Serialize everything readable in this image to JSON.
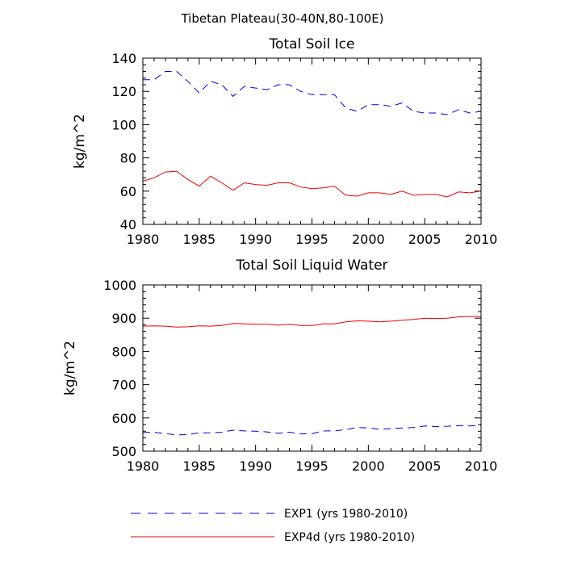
{
  "suptitle": "Tibetan Plateau(30-40N,80-100E)",
  "legend": [
    {
      "label": "EXP1 (yrs 1980-2010)",
      "color": "#0000ee",
      "dash": true
    },
    {
      "label": "EXP4d (yrs 1980-2010)",
      "color": "#ee0000",
      "dash": false
    }
  ],
  "chart_data": [
    {
      "type": "line",
      "title": "Total Soil Ice",
      "xlabel": "",
      "ylabel": "kg/m^2",
      "xlim": [
        1980,
        2010
      ],
      "ylim": [
        40,
        140
      ],
      "xticks": [
        1980,
        1985,
        1990,
        1995,
        2000,
        2005,
        2010
      ],
      "yticks": [
        40,
        60,
        80,
        100,
        120,
        140
      ],
      "x": [
        1980,
        1981,
        1982,
        1983,
        1984,
        1985,
        1986,
        1987,
        1988,
        1989,
        1990,
        1991,
        1992,
        1993,
        1994,
        1995,
        1996,
        1997,
        1998,
        1999,
        2000,
        2001,
        2002,
        2003,
        2004,
        2005,
        2006,
        2007,
        2008,
        2009,
        2010
      ],
      "series": [
        {
          "name": "EXP1 (yrs 1980-2010)",
          "color": "#0000ee",
          "dash": true,
          "values": [
            127,
            127,
            132,
            132,
            126,
            119,
            126,
            124,
            117,
            123,
            122,
            121,
            124,
            124,
            120,
            118,
            118,
            118,
            110,
            108,
            112,
            112,
            111,
            113,
            108,
            107,
            107,
            106,
            109,
            107,
            108
          ]
        },
        {
          "name": "EXP4d (yrs 1980-2010)",
          "color": "#ee0000",
          "dash": false,
          "values": [
            66,
            68,
            71.5,
            72,
            67,
            63,
            69,
            65,
            60.5,
            65,
            64,
            63.5,
            65,
            65,
            62.5,
            61.5,
            62,
            63,
            57.5,
            57,
            59,
            59,
            58,
            60,
            57.5,
            58,
            58,
            56.5,
            59.5,
            59,
            60
          ]
        }
      ]
    },
    {
      "type": "line",
      "title": "Total Soil Liquid Water",
      "xlabel": "",
      "ylabel": "kg/m^2",
      "xlim": [
        1980,
        2010
      ],
      "ylim": [
        500,
        1000
      ],
      "xticks": [
        1980,
        1985,
        1990,
        1995,
        2000,
        2005,
        2010
      ],
      "yticks": [
        500,
        600,
        700,
        800,
        900,
        1000
      ],
      "x": [
        1980,
        1981,
        1982,
        1983,
        1984,
        1985,
        1986,
        1987,
        1988,
        1989,
        1990,
        1991,
        1992,
        1993,
        1994,
        1995,
        1996,
        1997,
        1998,
        1999,
        2000,
        2001,
        2002,
        2003,
        2004,
        2005,
        2006,
        2007,
        2008,
        2009,
        2010
      ],
      "series": [
        {
          "name": "EXP1 (yrs 1980-2010)",
          "color": "#0000ee",
          "dash": true,
          "values": [
            556,
            557,
            553,
            549,
            550,
            555,
            555,
            557,
            563,
            561,
            560,
            558,
            554,
            557,
            552,
            553,
            561,
            561,
            565,
            571,
            570,
            566,
            568,
            570,
            571,
            576,
            574,
            575,
            577,
            576,
            578
          ]
        },
        {
          "name": "EXP4d (yrs 1980-2010)",
          "color": "#ee0000",
          "dash": false,
          "values": [
            876,
            877,
            876,
            873,
            874,
            877,
            876,
            878,
            884,
            883,
            882,
            882,
            879,
            882,
            878,
            878,
            883,
            883,
            889,
            892,
            891,
            889,
            891,
            894,
            896,
            900,
            899,
            900,
            904,
            905,
            905
          ]
        }
      ]
    }
  ]
}
